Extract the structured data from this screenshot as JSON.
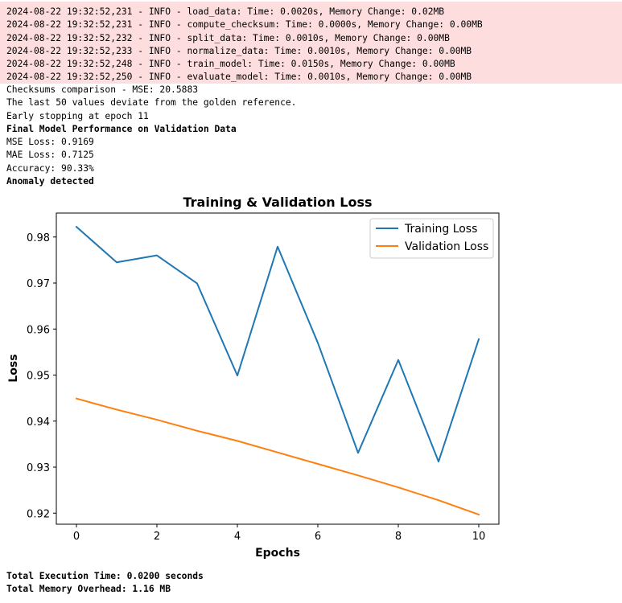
{
  "log_lines": [
    "2024-08-22 19:32:52,231 - INFO - load_data: Time: 0.0020s, Memory Change: 0.02MB",
    "2024-08-22 19:32:52,231 - INFO - compute_checksum: Time: 0.0000s, Memory Change: 0.00MB",
    "2024-08-22 19:32:52,232 - INFO - split_data: Time: 0.0010s, Memory Change: 0.00MB",
    "2024-08-22 19:32:52,233 - INFO - normalize_data: Time: 0.0010s, Memory Change: 0.00MB",
    "2024-08-22 19:32:52,248 - INFO - train_model: Time: 0.0150s, Memory Change: 0.00MB",
    "2024-08-22 19:32:52,250 - INFO - evaluate_model: Time: 0.0010s, Memory Change: 0.00MB"
  ],
  "stdout": {
    "checksum": "Checksums comparison - MSE: 20.5883",
    "deviation": "The last 50 values deviate from the golden reference.",
    "early_stop": "Early stopping at epoch 11",
    "perf_header": "Final Model Performance on Validation Data",
    "mse": "MSE Loss: 0.9169",
    "mae": "MAE Loss: 0.7125",
    "accuracy": "Accuracy: 90.33%",
    "anomaly": "Anomaly detected"
  },
  "footer": {
    "exec_time": "Total Execution Time: 0.0200 seconds",
    "memory": "Total Memory Overhead: 1.16 MB"
  },
  "colors": {
    "stderr_bg": "#fddddd",
    "training": "#1f77b4",
    "validation": "#ff7f0e"
  },
  "chart_data": {
    "type": "line",
    "title": "Training & Validation Loss",
    "xlabel": "Epochs",
    "ylabel": "Loss",
    "x": [
      0,
      1,
      2,
      3,
      4,
      5,
      6,
      7,
      8,
      9,
      10
    ],
    "series": [
      {
        "name": "Training Loss",
        "color": "#1f77b4",
        "values": [
          0.9822,
          0.9745,
          0.976,
          0.9699,
          0.9499,
          0.9779,
          0.957,
          0.9331,
          0.9533,
          0.9312,
          0.9578
        ]
      },
      {
        "name": "Validation Loss",
        "color": "#ff7f0e",
        "values": [
          0.9449,
          0.9425,
          0.9403,
          0.9379,
          0.9357,
          0.9332,
          0.9307,
          0.9282,
          0.9256,
          0.9228,
          0.9197
        ]
      }
    ],
    "xlim": [
      -0.5,
      10.5
    ],
    "ylim": [
      0.9176,
      0.9852
    ],
    "xticks": [
      0,
      2,
      4,
      6,
      8,
      10
    ],
    "yticks": [
      0.92,
      0.93,
      0.94,
      0.95,
      0.96,
      0.97,
      0.98
    ],
    "grid": false,
    "legend": "top-right"
  }
}
